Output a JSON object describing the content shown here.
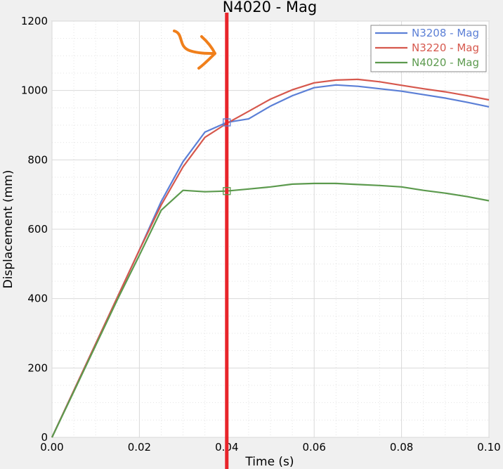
{
  "chart_data": {
    "type": "line",
    "title": "N4020 - Mag",
    "xlabel": "Time (s)",
    "ylabel": "Displacement (mm)",
    "xlim": [
      0,
      0.1
    ],
    "ylim": [
      0,
      1200
    ],
    "x_ticks": [
      "0.00",
      "0.02",
      "0.04",
      "0.06",
      "0.08",
      "0.10"
    ],
    "y_ticks": [
      "0",
      "200",
      "400",
      "600",
      "800",
      "1000",
      "1200"
    ],
    "grid": true,
    "legend_position": "top-right",
    "cursor_x": 0.04,
    "series": [
      {
        "name": "N3208 - Mag",
        "color": "#5b7fd6",
        "x": [
          0,
          0.005,
          0.01,
          0.015,
          0.02,
          0.025,
          0.03,
          0.035,
          0.04,
          0.045,
          0.05,
          0.055,
          0.06,
          0.065,
          0.07,
          0.075,
          0.08,
          0.085,
          0.09,
          0.095,
          0.1
        ],
        "y": [
          0,
          135,
          270,
          405,
          540,
          680,
          795,
          880,
          908,
          918,
          955,
          985,
          1008,
          1016,
          1012,
          1005,
          998,
          988,
          978,
          966,
          953
        ]
      },
      {
        "name": "N3220 - Mag",
        "color": "#d6584d",
        "x": [
          0,
          0.005,
          0.01,
          0.015,
          0.02,
          0.025,
          0.03,
          0.035,
          0.04,
          0.045,
          0.05,
          0.055,
          0.06,
          0.065,
          0.07,
          0.075,
          0.08,
          0.085,
          0.09,
          0.095,
          0.1
        ],
        "y": [
          0,
          135,
          270,
          405,
          540,
          670,
          780,
          865,
          905,
          940,
          975,
          1002,
          1022,
          1030,
          1032,
          1025,
          1015,
          1005,
          996,
          985,
          973
        ]
      },
      {
        "name": "N4020 - Mag",
        "color": "#5c9a4e",
        "x": [
          0,
          0.005,
          0.01,
          0.015,
          0.02,
          0.025,
          0.03,
          0.035,
          0.04,
          0.045,
          0.05,
          0.055,
          0.06,
          0.065,
          0.07,
          0.075,
          0.08,
          0.085,
          0.09,
          0.095,
          0.1
        ],
        "y": [
          0,
          132,
          265,
          398,
          525,
          655,
          712,
          708,
          710,
          716,
          722,
          730,
          732,
          732,
          729,
          726,
          722,
          712,
          704,
          694,
          682
        ]
      }
    ],
    "markers": [
      {
        "x": 0.04,
        "y": 908,
        "series": "N3208 - Mag"
      },
      {
        "x": 0.04,
        "y": 710,
        "series": "N4020 - Mag"
      }
    ]
  },
  "annotation": {
    "arrow_color": "#f07f1b",
    "cursor_color": "#e8242a"
  }
}
